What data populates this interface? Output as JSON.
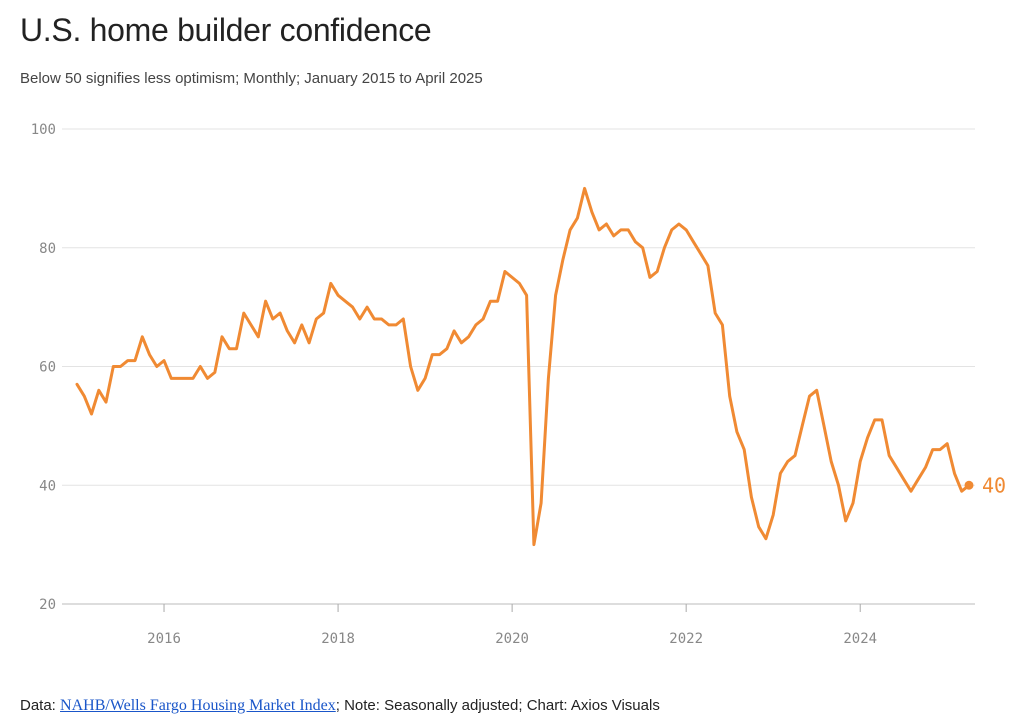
{
  "header": {
    "title": "U.S. home builder confidence",
    "subtitle": "Below 50 signifies less optimism; Monthly; January 2015 to April 2025"
  },
  "footer": {
    "prefix": "Data: ",
    "link_text": "NAHB/Wells Fargo Housing Market Index",
    "suffix": "; Note: Seasonally adjusted; Chart: Axios Visuals"
  },
  "colors": {
    "line": "#f08a33",
    "grid": "#e3e3e3",
    "axis": "#888888"
  },
  "chart_data": {
    "type": "line",
    "title": "U.S. home builder confidence",
    "subtitle": "Below 50 signifies less optimism; Monthly; January 2015 to April 2025",
    "xlabel": "",
    "ylabel": "",
    "ylim": [
      20,
      100
    ],
    "xlim": [
      2015.0,
      2025.25
    ],
    "yticks": [
      20,
      40,
      60,
      80,
      100
    ],
    "xticks": [
      2016,
      2018,
      2020,
      2022,
      2024
    ],
    "grid": true,
    "start": "2015-01",
    "end_label": "40",
    "series": [
      {
        "name": "NAHB/Wells Fargo Housing Market Index",
        "values": [
          57,
          55,
          52,
          56,
          54,
          60,
          60,
          61,
          61,
          65,
          62,
          60,
          61,
          58,
          58,
          58,
          58,
          60,
          58,
          59,
          65,
          63,
          63,
          69,
          67,
          65,
          71,
          68,
          69,
          66,
          64,
          67,
          64,
          68,
          69,
          74,
          72,
          71,
          70,
          68,
          70,
          68,
          68,
          67,
          67,
          68,
          60,
          56,
          58,
          62,
          62,
          63,
          66,
          64,
          65,
          67,
          68,
          71,
          71,
          76,
          75,
          74,
          72,
          30,
          37,
          58,
          72,
          78,
          83,
          85,
          90,
          86,
          83,
          84,
          82,
          83,
          83,
          81,
          80,
          75,
          76,
          80,
          83,
          84,
          83,
          81,
          79,
          77,
          69,
          67,
          55,
          49,
          46,
          38,
          33,
          31,
          35,
          42,
          44,
          45,
          50,
          55,
          56,
          50,
          44,
          40,
          34,
          37,
          44,
          48,
          51,
          51,
          45,
          43,
          41,
          39,
          41,
          43,
          46,
          46,
          47,
          42,
          39,
          40
        ]
      }
    ]
  }
}
